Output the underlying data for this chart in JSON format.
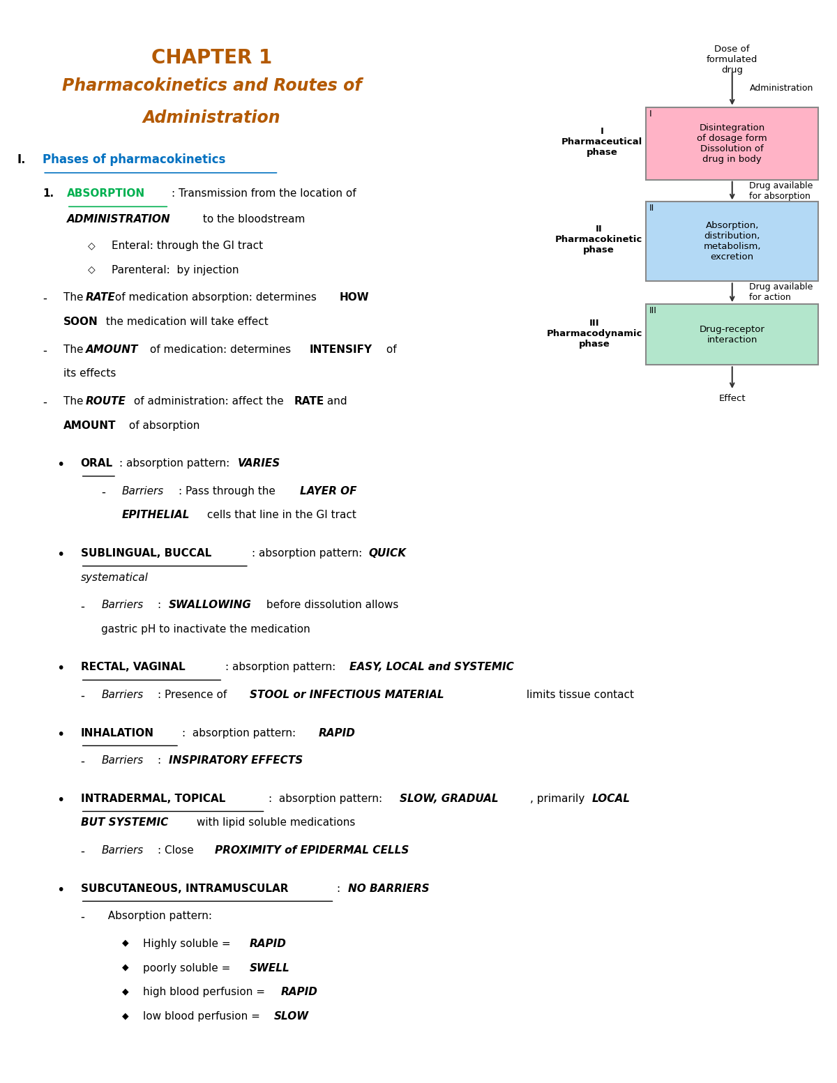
{
  "title_line1": "CHAPTER 1",
  "title_line2": "Pharmacokinetics and Routes of",
  "title_line3": "Administration",
  "title_color": "#b35900",
  "bg_color": "#ffffff",
  "section_heading": "Phases of pharmacokinetics",
  "section_heading_color": "#0070c0",
  "absorption_color": "#00b050",
  "diagram": {
    "box1_text": "Disintegration\nof dosage form\nDissolution of\ndrug in body",
    "box1_color": "#ffb3c6",
    "box1_border": "#888888",
    "box2_text": "Absorption,\ndistribution,\nmetabolism,\nexcretion",
    "box2_color": "#b3d9f5",
    "box2_border": "#888888",
    "box3_text": "Drug-receptor\ninteraction",
    "box3_color": "#b3e6cc",
    "box3_border": "#888888",
    "label1": "I\nPharmaceutical\nphase",
    "label2": "II\nPharmacokinetic\nphase",
    "label3": "III\nPharmacodynamic\nphase",
    "arrow_color": "#333333",
    "top_text": "Dose of\nformulated\ndrug",
    "arrow1_label": "Administration",
    "arrow2_label": "Drug available\nfor absorption",
    "arrow3_label": "Drug available\nfor action",
    "bottom_text": "Effect"
  },
  "text_color": "#000000"
}
